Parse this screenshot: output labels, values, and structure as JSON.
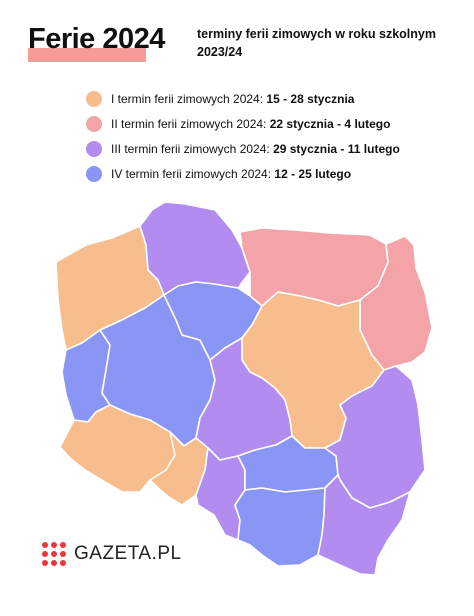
{
  "header": {
    "title": "Ferie 2024",
    "subtitle": "terminy ferii zimowych w roku szkolnym 2023/24"
  },
  "legend": [
    {
      "label": "I termin ferii zimowych 2024:",
      "dates": "15 - 28 stycznia",
      "color": "#f7bd8c"
    },
    {
      "label": "II termin ferii zimowych 2024:",
      "dates": "22 stycznia - 4 lutego",
      "color": "#f4a4a8"
    },
    {
      "label": "III termin ferii zimowych 2024:",
      "dates": "29 stycznia - 11 lutego",
      "color": "#b38cf0"
    },
    {
      "label": "IV termin ferii zimowych 2024:",
      "dates": "12 - 25 lutego",
      "color": "#8a96f5"
    }
  ],
  "map": {
    "regions": [
      {
        "name": "zachodniopomorskie",
        "term": "I",
        "color": "#f7bd8c"
      },
      {
        "name": "pomorskie",
        "term": "III",
        "color": "#b38cf0"
      },
      {
        "name": "warmińsko-mazurskie",
        "term": "II",
        "color": "#f4a4a8"
      },
      {
        "name": "podlaskie",
        "term": "II",
        "color": "#f4a4a8"
      },
      {
        "name": "lubuskie",
        "term": "IV",
        "color": "#8a96f5"
      },
      {
        "name": "wielkopolskie",
        "term": "IV",
        "color": "#8a96f5"
      },
      {
        "name": "kujawsko-pomorskie",
        "term": "IV",
        "color": "#8a96f5"
      },
      {
        "name": "mazowieckie",
        "term": "I",
        "color": "#f7bd8c"
      },
      {
        "name": "łódzkie",
        "term": "III",
        "color": "#b38cf0"
      },
      {
        "name": "dolnośląskie",
        "term": "I",
        "color": "#f7bd8c"
      },
      {
        "name": "opolskie",
        "term": "I",
        "color": "#f7bd8c"
      },
      {
        "name": "śląskie",
        "term": "III",
        "color": "#b38cf0"
      },
      {
        "name": "świętokrzyskie",
        "term": "IV",
        "color": "#8a96f5"
      },
      {
        "name": "lubelskie",
        "term": "III",
        "color": "#b38cf0"
      },
      {
        "name": "małopolskie",
        "term": "IV",
        "color": "#8a96f5"
      },
      {
        "name": "podkarpackie",
        "term": "III",
        "color": "#b38cf0"
      }
    ]
  },
  "logo": {
    "text": "GAZETA.PL",
    "color": "#e8383d"
  }
}
